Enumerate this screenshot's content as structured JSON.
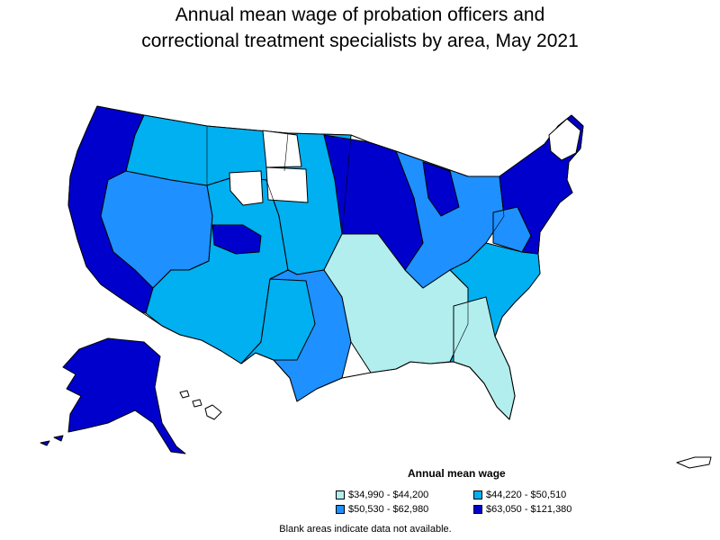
{
  "title": {
    "line1": "Annual mean wage of probation officers and",
    "line2": "correctional treatment specialists by area, May 2021"
  },
  "legend": {
    "title": "Annual mean wage",
    "items": [
      {
        "label": "$34,990 - $44,200",
        "color": "#b2eeee"
      },
      {
        "label": "$44,220 - $50,510",
        "color": "#00b0f0"
      },
      {
        "label": "$50,530 - $62,980",
        "color": "#1e90ff"
      },
      {
        "label": "$63,050 - $121,380",
        "color": "#0000cd"
      }
    ]
  },
  "note": "Blank areas indicate data not available."
}
